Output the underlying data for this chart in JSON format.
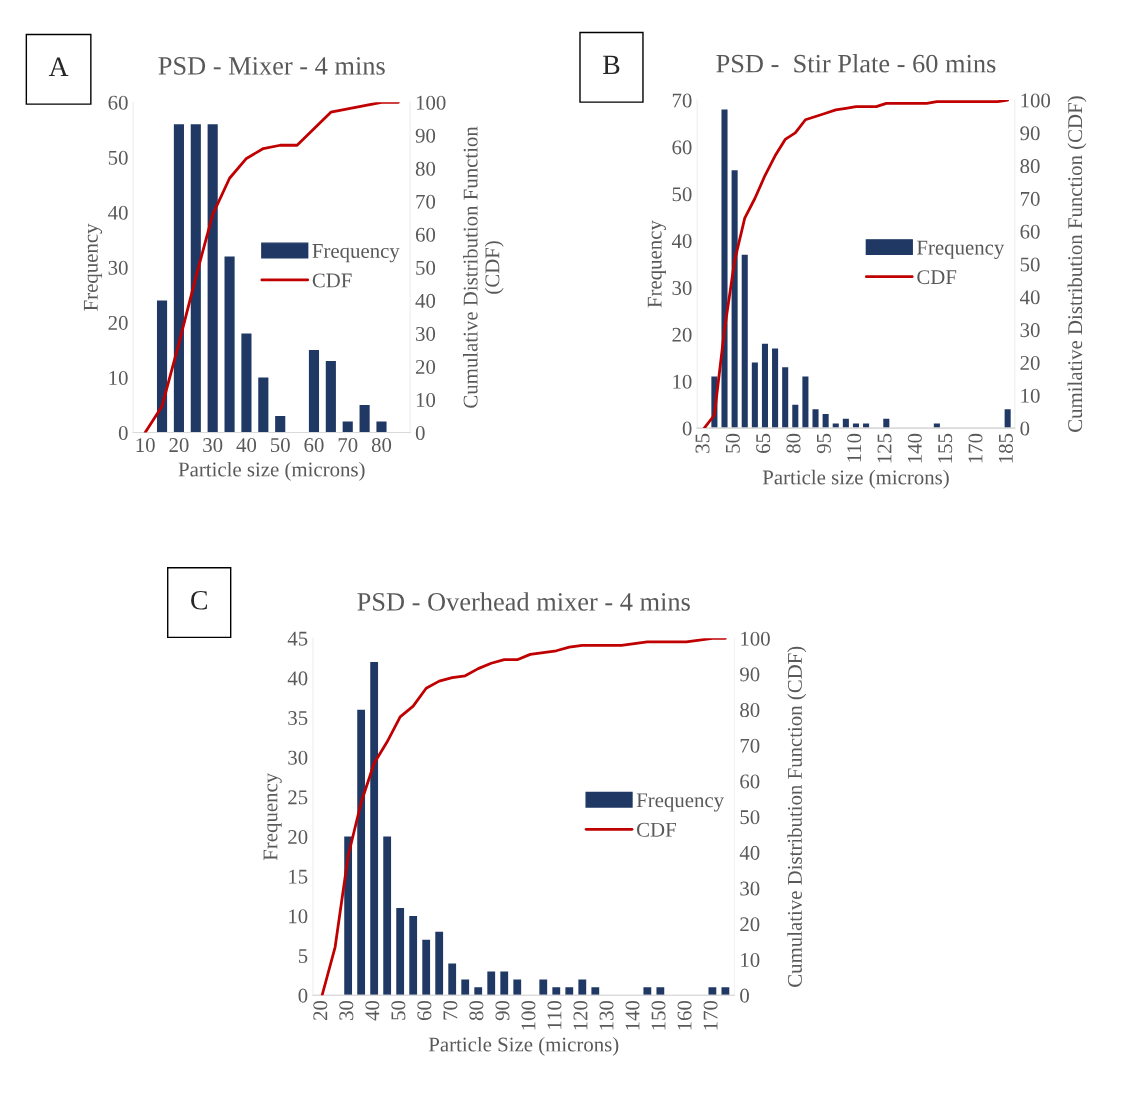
{
  "chart_data": [
    {
      "type": "bar",
      "title": "PSD - Mixer - 4 mins",
      "xlabel": "Particle size (microns)",
      "ylabel": "Frequency",
      "y2label": "Cumulative Distribution Function\n(CDF)",
      "annotations": [
        "A"
      ],
      "categories": [
        "10",
        null,
        "20",
        null,
        "30",
        null,
        "40",
        null,
        "50",
        null,
        "60",
        null,
        "70",
        null,
        "80",
        null
      ],
      "series": [
        {
          "name": "Frequency",
          "color": "#203864",
          "values": [
            0,
            24,
            56,
            56,
            56,
            32,
            18,
            10,
            3,
            0,
            15,
            13,
            2,
            5,
            2,
            0
          ]
        },
        {
          "name": "CDF",
          "type": "line",
          "axis": "y2",
          "color": "#c00000",
          "values": [
            0,
            8,
            27,
            47,
            66,
            77,
            83,
            86,
            87,
            87,
            92,
            97,
            98,
            99,
            100,
            100
          ]
        }
      ],
      "ylim": [
        0,
        60
      ],
      "yticks": [
        0,
        10,
        20,
        30,
        40,
        50,
        60
      ],
      "y2lim": [
        0,
        100
      ],
      "y2ticks": [
        0,
        10,
        20,
        30,
        40,
        50,
        60,
        70,
        80,
        90,
        100
      ],
      "legend": "right",
      "grid": false
    },
    {
      "type": "bar",
      "title": "PSD -  Stir Plate - 60 mins",
      "xlabel": "Particle size (microns)",
      "ylabel": "Frequency",
      "y2label": "Cumilative Distribution Function (CDF)",
      "annotations": [
        "B"
      ],
      "categories": [
        "35",
        null,
        null,
        "50",
        null,
        null,
        "65",
        null,
        null,
        "80",
        null,
        null,
        "95",
        null,
        null,
        "110",
        null,
        null,
        "125",
        null,
        null,
        "140",
        null,
        null,
        "155",
        null,
        null,
        "170",
        null,
        null,
        "185"
      ],
      "series": [
        {
          "name": "Frequency",
          "color": "#203864",
          "values": [
            0,
            11,
            68,
            55,
            37,
            14,
            18,
            17,
            13,
            5,
            11,
            4,
            3,
            1,
            2,
            1,
            1,
            0,
            2,
            0,
            0,
            0,
            0,
            1,
            0,
            0,
            0,
            0,
            0,
            0,
            4
          ]
        },
        {
          "name": "CDF",
          "type": "line",
          "axis": "y2",
          "color": "#c00000",
          "values": [
            0,
            4,
            30,
            51,
            64,
            70,
            77,
            83,
            88,
            90,
            94,
            95,
            96,
            97,
            97.5,
            98,
            98,
            98,
            99,
            99,
            99,
            99,
            99,
            99.5,
            99.5,
            99.5,
            99.5,
            99.5,
            99.5,
            99.5,
            100
          ]
        }
      ],
      "ylim": [
        0,
        70
      ],
      "yticks": [
        0,
        10,
        20,
        30,
        40,
        50,
        60,
        70
      ],
      "y2lim": [
        0,
        100
      ],
      "y2ticks": [
        0,
        10,
        20,
        30,
        40,
        50,
        60,
        70,
        80,
        90,
        100
      ],
      "legend": "right",
      "grid": false
    },
    {
      "type": "bar",
      "title": "PSD - Overhead mixer - 4 mins",
      "xlabel": "Particle Size (microns)",
      "ylabel": "Frequency",
      "y2label": "Cumulative Distribution Function (CDF)",
      "annotations": [
        "C"
      ],
      "categories": [
        "20",
        null,
        "30",
        null,
        "40",
        null,
        "50",
        null,
        "60",
        null,
        "70",
        null,
        "80",
        null,
        "90",
        null,
        "100",
        null,
        "110",
        null,
        "120",
        null,
        "130",
        null,
        "140",
        null,
        "150",
        null,
        "160",
        null,
        "170",
        null
      ],
      "series": [
        {
          "name": "Frequency",
          "color": "#203864",
          "values": [
            0,
            0,
            20,
            36,
            42,
            20,
            11,
            10,
            7,
            8,
            4,
            2,
            1,
            3,
            3,
            2,
            0,
            2,
            1,
            1,
            2,
            1,
            0,
            0,
            0,
            1,
            1,
            0,
            0,
            0,
            1,
            1
          ]
        },
        {
          "name": "CDF",
          "type": "line",
          "axis": "y2",
          "color": "#c00000",
          "values": [
            0,
            13.5,
            39,
            54,
            65,
            71,
            78,
            81,
            86,
            88,
            89,
            89.5,
            91.5,
            93,
            94,
            94,
            95.5,
            96,
            96.5,
            97.5,
            98,
            98,
            98,
            98,
            98.5,
            99,
            99,
            99,
            99,
            99.5,
            100,
            100
          ]
        }
      ],
      "ylim": [
        0,
        45
      ],
      "yticks": [
        0,
        5,
        10,
        15,
        20,
        25,
        30,
        35,
        40,
        45
      ],
      "y2lim": [
        0,
        100
      ],
      "y2ticks": [
        0,
        10,
        20,
        30,
        40,
        50,
        60,
        70,
        80,
        90,
        100
      ],
      "legend": "right",
      "grid": false
    }
  ]
}
